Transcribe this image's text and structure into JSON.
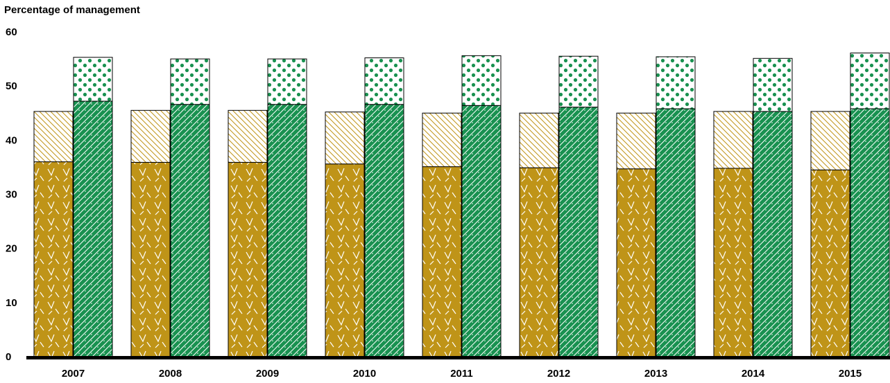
{
  "chart_data": {
    "type": "bar",
    "ylabel": "Percentage of management",
    "xlabel": "",
    "title": "",
    "ylim": [
      0,
      60
    ],
    "yticks": [
      0,
      10,
      20,
      30,
      40,
      50,
      60
    ],
    "categories": [
      "2007",
      "2008",
      "2009",
      "2010",
      "2011",
      "2012",
      "2013",
      "2014",
      "2015"
    ],
    "stacks": [
      {
        "segments": [
          {
            "values": [
              36.0,
              35.9,
              35.9,
              35.6,
              35.1,
              34.9,
              34.7,
              34.8,
              34.5
            ],
            "color": "#bf9418",
            "pattern": "chevrons"
          },
          {
            "values": [
              9.3,
              9.6,
              9.6,
              9.6,
              9.9,
              10.1,
              10.3,
              10.5,
              10.8
            ],
            "color": "#ffffff",
            "pattern": "backslash-gold"
          }
        ]
      },
      {
        "segments": [
          {
            "values": [
              47.2,
              46.6,
              46.6,
              46.6,
              46.4,
              46.1,
              45.8,
              45.3,
              45.8
            ],
            "color": "#199150",
            "pattern": "diagonal-white"
          },
          {
            "values": [
              8.1,
              8.4,
              8.4,
              8.6,
              9.2,
              9.4,
              9.6,
              9.8,
              10.3
            ],
            "color": "#ffffff",
            "pattern": "dots-green"
          }
        ]
      }
    ],
    "grid": false,
    "legend": "none"
  }
}
